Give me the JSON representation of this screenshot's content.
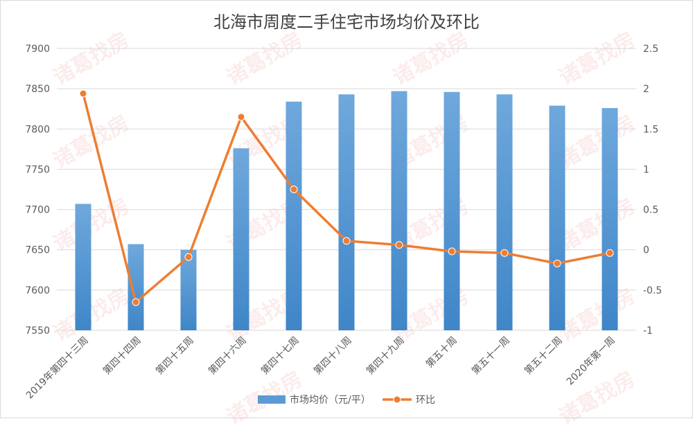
{
  "chart_data": {
    "type": "bar",
    "title": "北海市周度二手住宅市场均价及环比",
    "categories": [
      "2019年第四十三周",
      "第四十四周",
      "第四十五周",
      "第四十六周",
      "第四十七周",
      "第四十八周",
      "第四十九周",
      "第五十周",
      "第五十一周",
      "第五十二周",
      "2020年第一周"
    ],
    "series": [
      {
        "name": "市场均价（元/平）",
        "type": "bar",
        "axis": "left",
        "color": "#5b9bd5",
        "values": [
          7707,
          7657,
          7650,
          7776,
          7834,
          7843,
          7847,
          7846,
          7843,
          7829,
          7826
        ]
      },
      {
        "name": "环比",
        "type": "line",
        "axis": "right",
        "color": "#ed7d31",
        "values": [
          1.94,
          -0.65,
          -0.09,
          1.65,
          0.75,
          0.11,
          0.06,
          -0.02,
          -0.04,
          -0.17,
          -0.04
        ]
      }
    ],
    "y_left": {
      "min": 7550,
      "max": 7900,
      "step": 50,
      "ticks": [
        "7550",
        "7600",
        "7650",
        "7700",
        "7750",
        "7800",
        "7850",
        "7900"
      ]
    },
    "y_right": {
      "min": -1,
      "max": 2.5,
      "step": 0.5,
      "ticks": [
        "-1",
        "-0.5",
        "0",
        "0.5",
        "1",
        "1.5",
        "2",
        "2.5"
      ]
    },
    "grid": true,
    "legend": "bottom",
    "watermark": "诸葛找房"
  }
}
